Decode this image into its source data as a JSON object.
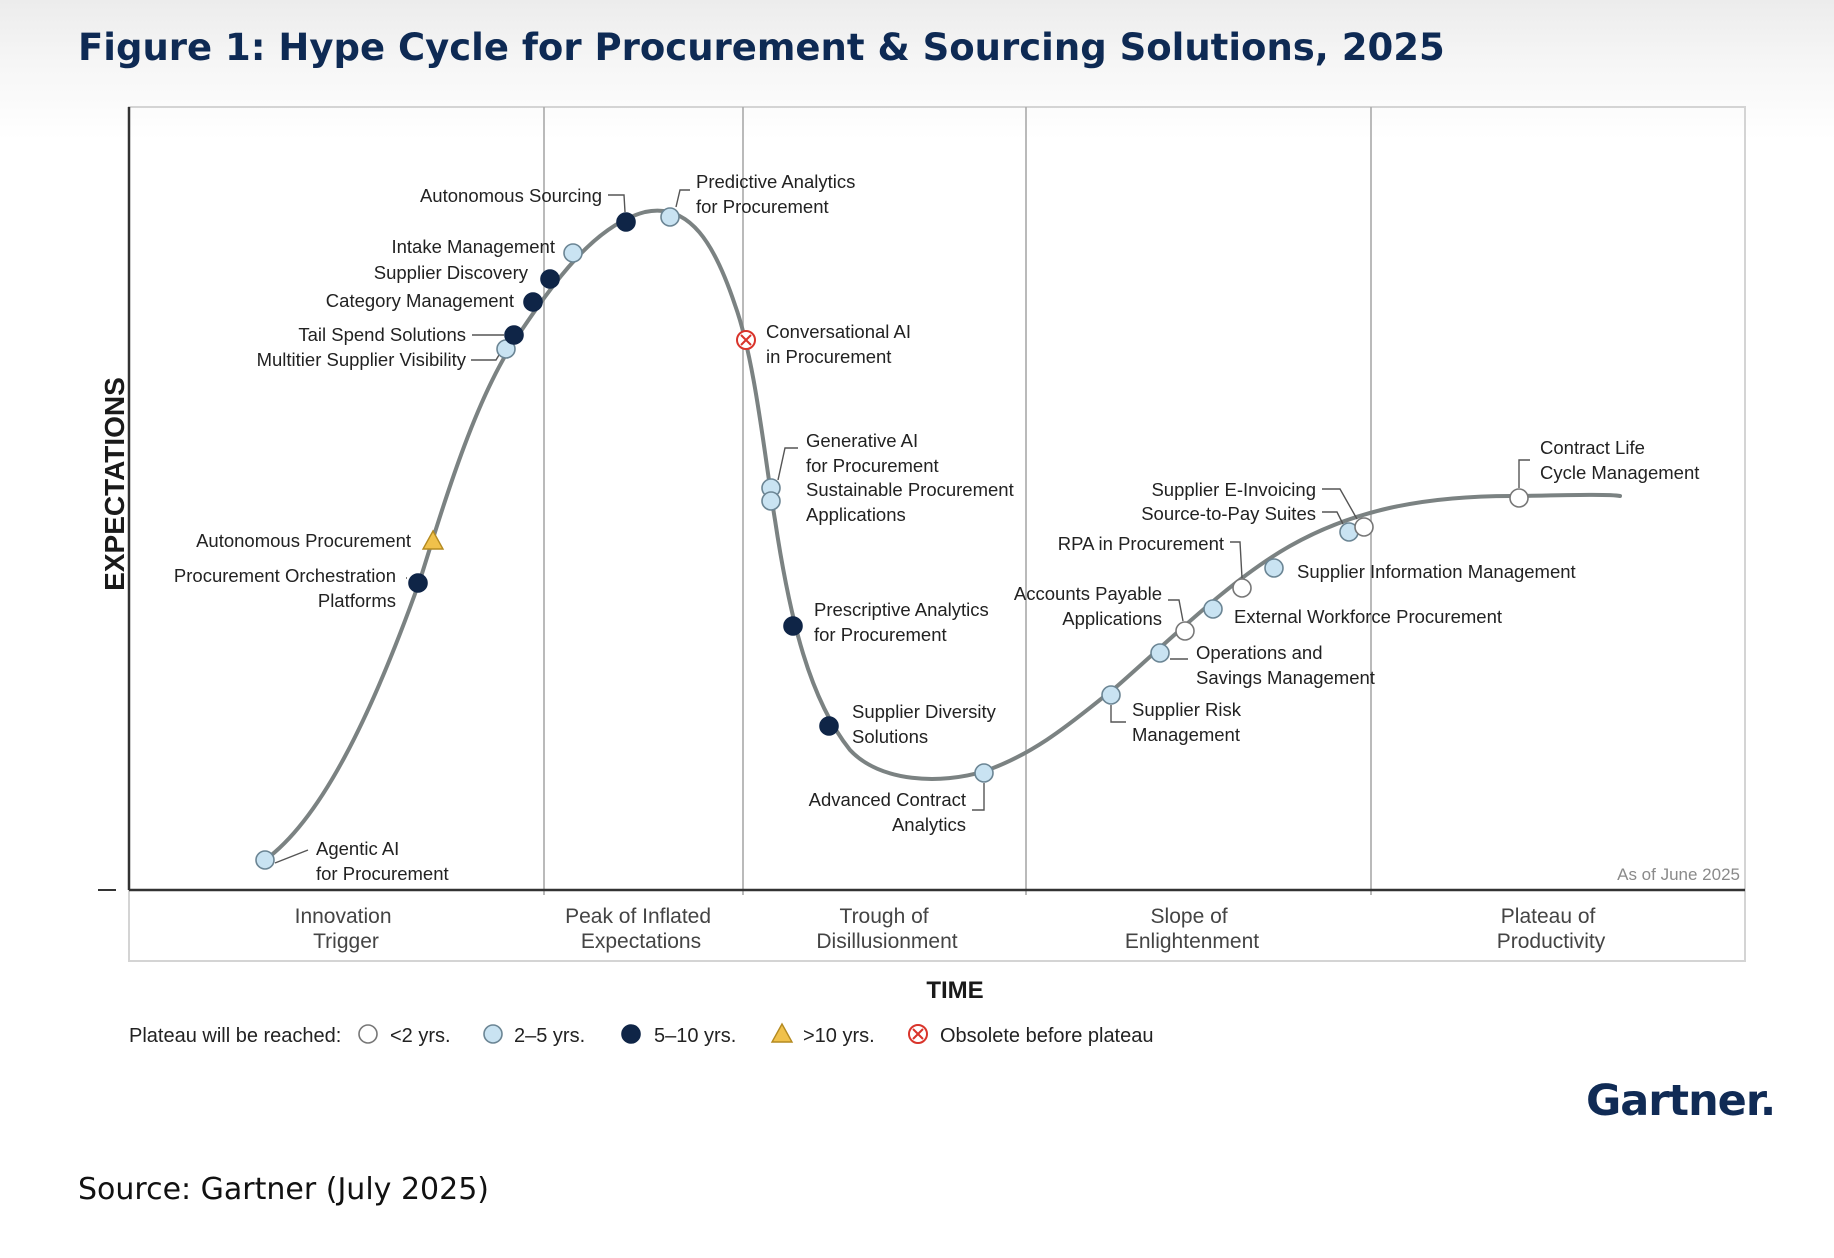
{
  "title": "Figure 1: Hype Cycle for Procurement & Sourcing Solutions, 2025",
  "source": "Source: Gartner (July 2025)",
  "logo": "Gartner.",
  "chart_data": {
    "type": "scatter",
    "ylabel": "EXPECTATIONS",
    "xlabel": "TIME",
    "as_of": "As of June 2025",
    "phases": [
      {
        "line1": "Innovation",
        "line2": "Trigger"
      },
      {
        "line1": "Peak of Inflated",
        "line2": "Expectations"
      },
      {
        "line1": "Trough of",
        "line2": "Disillusionment"
      },
      {
        "line1": "Slope of",
        "line2": "Enlightenment"
      },
      {
        "line1": "Plateau of",
        "line2": "Productivity"
      }
    ],
    "legend": {
      "title": "Plateau will be reached:",
      "items": [
        {
          "key": "lt2",
          "label": "<2 yrs.",
          "marker": "circle",
          "color": "#ffffff"
        },
        {
          "key": "2to5",
          "label": "2–5 yrs.",
          "marker": "circle",
          "color": "#c9e3f2"
        },
        {
          "key": "5to10",
          "label": "5–10 yrs.",
          "marker": "circle",
          "color": "#0f2547"
        },
        {
          "key": "gt10",
          "label": ">10 yrs.",
          "marker": "triangle",
          "color": "#f0c14b"
        },
        {
          "key": "obsolete",
          "label": "Obsolete before plateau",
          "marker": "x-circle",
          "color": "#d9342b"
        }
      ]
    },
    "colors": {
      "curve": "#7b8282",
      "dark": "#0f2547",
      "light": "#c9e3f2",
      "obsolete": "#d9342b",
      "triangle": "#f0c14b"
    },
    "technologies": [
      {
        "name": [
          "Agentic AI",
          "for Procurement"
        ],
        "category": "2to5"
      },
      {
        "name": [
          "Procurement Orchestration",
          "Platforms"
        ],
        "category": "5to10"
      },
      {
        "name": [
          "Autonomous Procurement"
        ],
        "category": "gt10"
      },
      {
        "name": [
          "Multitier Supplier Visibility"
        ],
        "category": "2to5"
      },
      {
        "name": [
          "Tail Spend Solutions"
        ],
        "category": "5to10"
      },
      {
        "name": [
          "Category Management"
        ],
        "category": "5to10"
      },
      {
        "name": [
          "Supplier Discovery"
        ],
        "category": "5to10"
      },
      {
        "name": [
          "Intake Management"
        ],
        "category": "2to5"
      },
      {
        "name": [
          "Autonomous Sourcing"
        ],
        "category": "5to10"
      },
      {
        "name": [
          "Predictive Analytics",
          "for Procurement"
        ],
        "category": "2to5"
      },
      {
        "name": [
          "Conversational AI",
          "in Procurement"
        ],
        "category": "obsolete"
      },
      {
        "name": [
          "Generative AI",
          "for Procurement"
        ],
        "category": "2to5"
      },
      {
        "name": [
          "Sustainable Procurement",
          "Applications"
        ],
        "category": "2to5"
      },
      {
        "name": [
          "Prescriptive Analytics",
          "for Procurement"
        ],
        "category": "5to10"
      },
      {
        "name": [
          "Supplier Diversity",
          "Solutions"
        ],
        "category": "5to10"
      },
      {
        "name": [
          "Advanced Contract",
          "Analytics"
        ],
        "category": "2to5"
      },
      {
        "name": [
          "Supplier Risk",
          "Management"
        ],
        "category": "2to5"
      },
      {
        "name": [
          "Operations and",
          "Savings Management"
        ],
        "category": "2to5"
      },
      {
        "name": [
          "Accounts Payable",
          "Applications"
        ],
        "category": "lt2"
      },
      {
        "name": [
          "External Workforce Procurement"
        ],
        "category": "2to5"
      },
      {
        "name": [
          "RPA in Procurement"
        ],
        "category": "lt2"
      },
      {
        "name": [
          "Supplier Information Management"
        ],
        "category": "2to5"
      },
      {
        "name": [
          "Source-to-Pay Suites"
        ],
        "category": "2to5"
      },
      {
        "name": [
          "Supplier E-Invoicing"
        ],
        "category": "lt2"
      },
      {
        "name": [
          "Contract Life",
          "Cycle Management"
        ],
        "category": "lt2"
      }
    ]
  }
}
